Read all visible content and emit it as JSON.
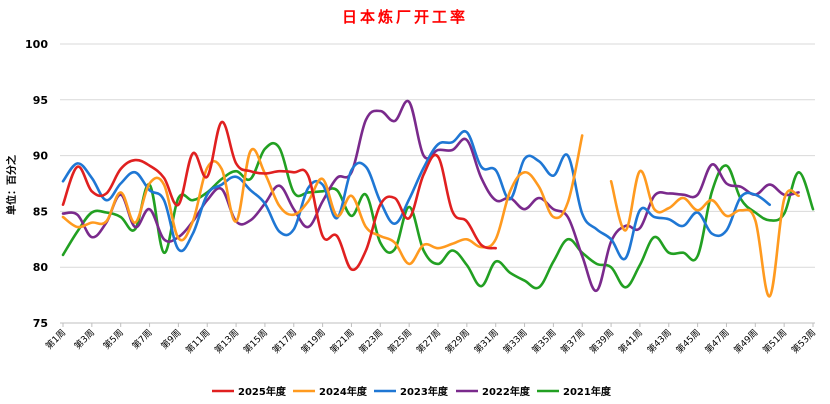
{
  "chart_data": {
    "type": "line",
    "title": "日本炼厂开工率",
    "ylabel": "单位：百分之",
    "ylim": [
      75,
      100
    ],
    "yticks": [
      75,
      80,
      85,
      90,
      95,
      100
    ],
    "grid": "horizontal",
    "legend_position": "bottom",
    "weeks": [
      1,
      2,
      3,
      4,
      5,
      6,
      7,
      8,
      9,
      10,
      11,
      12,
      13,
      14,
      15,
      16,
      17,
      18,
      19,
      20,
      21,
      22,
      23,
      24,
      25,
      26,
      27,
      28,
      29,
      30,
      31,
      32,
      33,
      34,
      35,
      36,
      37,
      38,
      39,
      40,
      41,
      42,
      43,
      44,
      45,
      46,
      47,
      48,
      49,
      50,
      51,
      52,
      53
    ],
    "x_tick_labels": [
      "第1周",
      "第3周",
      "第5周",
      "第7周",
      "第9周",
      "第11周",
      "第13周",
      "第15周",
      "第17周",
      "第19周",
      "第21周",
      "第23周",
      "第25周",
      "第27周",
      "第29周",
      "第31周",
      "第33周",
      "第35周",
      "第37周",
      "第39周",
      "第41周",
      "第43周",
      "第45周",
      "第47周",
      "第49周",
      "第51周",
      "第53周"
    ],
    "series": [
      {
        "name": "2025年度",
        "color": "#e02020",
        "values": [
          85.6,
          89.0,
          86.8,
          86.6,
          88.8,
          89.6,
          89.1,
          88.0,
          85.6,
          90.2,
          88.1,
          93.0,
          89.3,
          88.6,
          88.4,
          88.6,
          88.5,
          88.2,
          82.8,
          82.8,
          79.8,
          81.5,
          85.6,
          86.2,
          84.4,
          88.3,
          89.9,
          85.0,
          84.1,
          82.0,
          81.7,
          null,
          null,
          null,
          null,
          null,
          null,
          null,
          null,
          null,
          null,
          null,
          null,
          null,
          null,
          null,
          null,
          null,
          null,
          null,
          null,
          null,
          null
        ]
      },
      {
        "name": "2024年度",
        "color": "#ff9a1f",
        "values": [
          84.5,
          83.6,
          84.0,
          84.1,
          86.7,
          84.0,
          87.5,
          87.4,
          82.6,
          84.1,
          88.9,
          88.8,
          84.1,
          90.4,
          88.4,
          85.5,
          84.7,
          85.9,
          87.9,
          84.6,
          86.4,
          83.6,
          82.8,
          82.2,
          80.3,
          82.0,
          81.7,
          82.1,
          82.5,
          81.8,
          82.5,
          86.8,
          88.5,
          87.2,
          84.5,
          85.8,
          91.8,
          null,
          87.7,
          83.3,
          88.6,
          85.2,
          85.3,
          86.2,
          85.1,
          86.0,
          84.6,
          85.1,
          84.2,
          77.4,
          86.1,
          86.4,
          null
        ]
      },
      {
        "name": "2023年度",
        "color": "#1f77d4",
        "values": [
          87.7,
          89.3,
          88.0,
          86.0,
          87.5,
          88.5,
          86.9,
          86.0,
          81.6,
          83.0,
          86.5,
          87.4,
          88.1,
          86.9,
          85.7,
          83.2,
          83.4,
          87.1,
          87.4,
          84.4,
          88.7,
          89.0,
          85.9,
          83.9,
          86.1,
          88.9,
          91.0,
          91.2,
          92.1,
          89.0,
          88.7,
          86.1,
          89.7,
          89.5,
          88.2,
          90.0,
          84.8,
          83.4,
          82.5,
          80.8,
          85.1,
          84.5,
          84.3,
          83.7,
          84.9,
          83.0,
          83.3,
          86.3,
          86.5,
          85.6,
          null,
          null,
          null
        ]
      },
      {
        "name": "2022年度",
        "color": "#7a2a8c",
        "values": [
          84.8,
          84.7,
          82.7,
          84.0,
          86.5,
          83.6,
          85.2,
          82.5,
          82.7,
          84.1,
          86.0,
          87.0,
          84.1,
          84.2,
          85.7,
          87.3,
          85.2,
          83.6,
          85.9,
          88.0,
          88.5,
          93.2,
          94.0,
          93.1,
          94.8,
          90.0,
          90.5,
          90.5,
          91.4,
          88.0,
          86.0,
          86.2,
          85.2,
          86.2,
          85.2,
          84.5,
          81.0,
          77.9,
          82.3,
          83.7,
          83.5,
          86.4,
          86.6,
          86.5,
          86.5,
          89.2,
          87.5,
          87.2,
          86.5,
          87.4,
          86.5,
          86.7,
          null
        ]
      },
      {
        "name": "2021年度",
        "color": "#22a022",
        "values": [
          81.1,
          83.2,
          84.9,
          84.9,
          84.5,
          83.4,
          87.4,
          81.3,
          86.2,
          86.0,
          86.7,
          87.9,
          88.6,
          87.9,
          90.6,
          90.7,
          86.7,
          86.7,
          86.8,
          86.9,
          84.6,
          86.5,
          82.2,
          81.6,
          85.4,
          81.5,
          80.3,
          81.5,
          80.2,
          78.3,
          80.5,
          79.5,
          78.8,
          78.2,
          80.5,
          82.5,
          81.3,
          80.3,
          80.0,
          78.2,
          80.2,
          82.7,
          81.3,
          81.3,
          81.0,
          86.8,
          89.1,
          86.1,
          84.9,
          84.2,
          84.8,
          88.5,
          85.2
        ]
      }
    ]
  }
}
